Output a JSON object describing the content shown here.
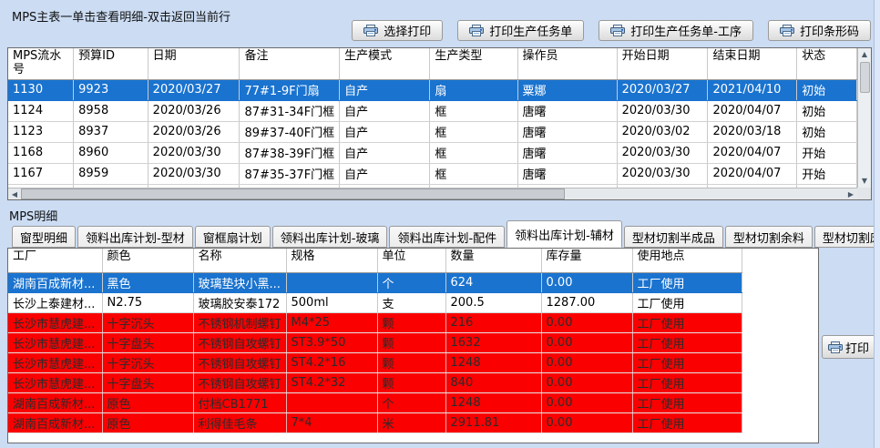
{
  "colors": {
    "background": "#cbdcf3",
    "selected_row": "#1a73cf",
    "alert_row": "#fa0000"
  },
  "main": {
    "title": "MPS主表一单击查看明细-双击返回当前行",
    "toolbar_buttons": [
      "选择打印",
      "打印生产任务单",
      "打印生产任务单-工序",
      "打印条形码"
    ],
    "table": {
      "columns": [
        "MPS流水号",
        "预算ID",
        "日期",
        "备注",
        "生产模式",
        "生产类型",
        "操作员",
        "开始日期",
        "结束日期",
        "状态"
      ],
      "rows": [
        {
          "state": "selected",
          "cells": [
            "1130",
            "9923",
            "2020/03/27",
            "77#1-9F门扇",
            "自产",
            "扇",
            "粟娜",
            "2020/03/27",
            "2021/04/10",
            "初始"
          ]
        },
        {
          "state": "normal",
          "cells": [
            "1124",
            "8958",
            "2020/03/26",
            "87#31-34F门框",
            "自产",
            "框",
            "唐曙",
            "2020/03/30",
            "2020/04/07",
            "初始"
          ]
        },
        {
          "state": "normal",
          "cells": [
            "1123",
            "8937",
            "2020/03/26",
            "89#37-40F门框",
            "自产",
            "框",
            "唐曙",
            "2020/03/02",
            "2020/03/18",
            "初始"
          ]
        },
        {
          "state": "normal",
          "cells": [
            "1168",
            "8960",
            "2020/03/30",
            "87#38-39F门框",
            "自产",
            "框",
            "唐曙",
            "2020/03/30",
            "2020/04/07",
            "开始"
          ]
        },
        {
          "state": "normal",
          "cells": [
            "1167",
            "8959",
            "2020/03/30",
            "87#35-37F门框",
            "自产",
            "框",
            "唐曙",
            "2020/03/30",
            "2020/04/07",
            "开始"
          ]
        }
      ]
    }
  },
  "detail": {
    "title": "MPS明细",
    "tabs": [
      {
        "label": "窗型明细",
        "active": false
      },
      {
        "label": "领料出库计划-型材",
        "active": false
      },
      {
        "label": "窗框扇计划",
        "active": false
      },
      {
        "label": "领料出库计划-玻璃",
        "active": false
      },
      {
        "label": "领料出库计划-配件",
        "active": false
      },
      {
        "label": "领料出库计划-辅材",
        "active": true
      },
      {
        "label": "型材切割半成品",
        "active": false
      },
      {
        "label": "型材切割余料",
        "active": false
      },
      {
        "label": "型材切割废料",
        "active": false
      },
      {
        "label": "工序",
        "active": false
      }
    ],
    "print_button": "打印",
    "table": {
      "columns": [
        "工厂",
        "颜色",
        "名称",
        "规格",
        "单位",
        "数量",
        "库存量",
        "使用地点"
      ],
      "rows": [
        {
          "state": "selected",
          "cells": [
            "湖南百成新材...",
            "黑色",
            "玻璃垫块小黑...",
            "",
            "个",
            "624",
            "0.00",
            "工厂使用"
          ]
        },
        {
          "state": "normal",
          "cells": [
            "长沙上泰建材...",
            "N2.75",
            "玻璃胶安泰172",
            "500ml",
            "支",
            "200.5",
            "1287.00",
            "工厂使用"
          ]
        },
        {
          "state": "alert",
          "cells": [
            "长沙市慧虎建...",
            "十字沉头",
            "不锈钢机制螺钉",
            "M4*25",
            "颗",
            "216",
            "0.00",
            "工厂使用"
          ]
        },
        {
          "state": "alert",
          "cells": [
            "长沙市慧虎建...",
            "十字盘头",
            "不锈钢自攻螺钉",
            "ST3.9*50",
            "颗",
            "1632",
            "0.00",
            "工厂使用"
          ]
        },
        {
          "state": "alert",
          "cells": [
            "长沙市慧虎建...",
            "十字沉头",
            "不锈钢自攻螺钉",
            "ST4.2*16",
            "颗",
            "1248",
            "0.00",
            "工厂使用"
          ]
        },
        {
          "state": "alert",
          "cells": [
            "长沙市慧虎建...",
            "十字盘头",
            "不锈钢自攻螺钉",
            "ST4.2*32",
            "颗",
            "840",
            "0.00",
            "工厂使用"
          ]
        },
        {
          "state": "alert",
          "cells": [
            "湖南百成新材...",
            "原色",
            "付档CB1771",
            "",
            "个",
            "1248",
            "0.00",
            "工厂使用"
          ]
        },
        {
          "state": "alert",
          "cells": [
            "湖南百成新材...",
            "原色",
            "利得佳毛条",
            "7*4",
            "米",
            "2911.81",
            "0.00",
            "工厂使用"
          ]
        }
      ]
    }
  },
  "scrollbars": {
    "up_arrow": "▲",
    "down_arrow": "▼",
    "left_arrow": "◀",
    "right_arrow": "▶"
  }
}
